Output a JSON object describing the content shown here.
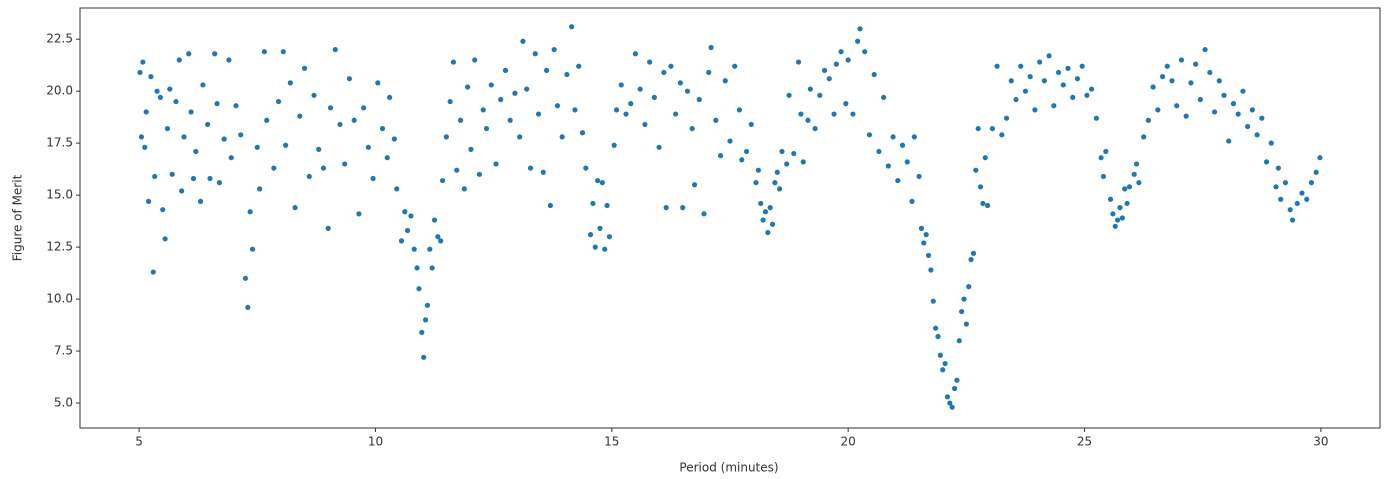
{
  "chart_data": {
    "type": "scatter",
    "xlabel": "Period (minutes)",
    "ylabel": "Figure of Merit",
    "color": "#1f77b4",
    "xlim": [
      3.75,
      31.25
    ],
    "ylim": [
      3.8,
      24.0
    ],
    "xticks": [
      5,
      10,
      15,
      20,
      25,
      30
    ],
    "yticks": [
      {
        "value": 5,
        "label": "5.0"
      },
      7.5,
      {
        "value": 10,
        "label": "10.0"
      },
      12.5,
      {
        "value": 15,
        "label": "15.0"
      },
      17.5,
      {
        "value": 20,
        "label": "20.0"
      },
      22.5
    ],
    "x": [
      5.02,
      5.05,
      5.08,
      5.12,
      5.15,
      5.2,
      5.25,
      5.3,
      5.33,
      5.38,
      5.45,
      5.5,
      5.55,
      5.6,
      5.65,
      5.7,
      5.78,
      5.85,
      5.9,
      5.95,
      6.05,
      6.1,
      6.15,
      6.2,
      6.3,
      6.35,
      6.45,
      6.5,
      6.6,
      6.65,
      6.7,
      6.8,
      6.9,
      6.95,
      7.05,
      7.15,
      7.25,
      7.3,
      7.35,
      7.4,
      7.5,
      7.55,
      7.65,
      7.7,
      7.85,
      7.95,
      8.05,
      8.1,
      8.2,
      8.3,
      8.4,
      8.5,
      8.6,
      8.7,
      8.8,
      8.9,
      9.0,
      9.05,
      9.15,
      9.25,
      9.35,
      9.45,
      9.55,
      9.65,
      9.75,
      9.85,
      9.95,
      10.05,
      10.15,
      10.25,
      10.3,
      10.4,
      10.45,
      10.55,
      10.62,
      10.68,
      10.75,
      10.82,
      10.88,
      10.92,
      10.98,
      11.02,
      11.06,
      11.1,
      11.15,
      11.2,
      11.25,
      11.32,
      11.38,
      11.42,
      11.5,
      11.58,
      11.65,
      11.72,
      11.8,
      11.88,
      11.95,
      12.02,
      12.1,
      12.2,
      12.28,
      12.35,
      12.45,
      12.55,
      12.65,
      12.75,
      12.85,
      12.95,
      13.05,
      13.12,
      13.2,
      13.28,
      13.38,
      13.45,
      13.55,
      13.62,
      13.7,
      13.78,
      13.85,
      13.95,
      14.05,
      14.15,
      14.22,
      14.3,
      14.38,
      14.45,
      14.55,
      14.6,
      14.65,
      14.7,
      14.75,
      14.8,
      14.85,
      14.9,
      14.95,
      15.05,
      15.1,
      15.2,
      15.3,
      15.4,
      15.5,
      15.6,
      15.7,
      15.8,
      15.9,
      16.0,
      16.1,
      16.15,
      16.25,
      16.35,
      16.45,
      16.5,
      16.6,
      16.7,
      16.75,
      16.85,
      16.95,
      17.05,
      17.1,
      17.2,
      17.3,
      17.4,
      17.5,
      17.6,
      17.7,
      17.75,
      17.85,
      17.95,
      18.05,
      18.1,
      18.15,
      18.2,
      18.25,
      18.3,
      18.35,
      18.4,
      18.45,
      18.5,
      18.55,
      18.6,
      18.7,
      18.75,
      18.85,
      18.95,
      19.0,
      19.05,
      19.15,
      19.2,
      19.3,
      19.4,
      19.5,
      19.6,
      19.7,
      19.75,
      19.85,
      19.95,
      20.0,
      20.1,
      20.2,
      20.25,
      20.35,
      20.45,
      20.55,
      20.65,
      20.75,
      20.85,
      20.95,
      21.05,
      21.15,
      21.25,
      21.35,
      21.4,
      21.5,
      21.55,
      21.6,
      21.65,
      21.7,
      21.75,
      21.8,
      21.85,
      21.9,
      21.95,
      22.0,
      22.05,
      22.1,
      22.15,
      22.2,
      22.25,
      22.3,
      22.35,
      22.4,
      22.45,
      22.5,
      22.55,
      22.6,
      22.65,
      22.7,
      22.75,
      22.8,
      22.85,
      22.9,
      22.95,
      23.05,
      23.15,
      23.25,
      23.35,
      23.45,
      23.55,
      23.65,
      23.75,
      23.85,
      23.95,
      24.05,
      24.15,
      24.25,
      24.35,
      24.45,
      24.55,
      24.65,
      24.75,
      24.85,
      24.95,
      25.05,
      25.15,
      25.25,
      25.35,
      25.4,
      25.45,
      25.55,
      25.6,
      25.65,
      25.7,
      25.75,
      25.8,
      25.85,
      25.9,
      25.95,
      26.05,
      26.1,
      26.15,
      26.25,
      26.35,
      26.45,
      26.55,
      26.65,
      26.75,
      26.85,
      26.95,
      27.05,
      27.15,
      27.25,
      27.35,
      27.45,
      27.55,
      27.65,
      27.75,
      27.85,
      27.95,
      28.05,
      28.15,
      28.25,
      28.35,
      28.45,
      28.55,
      28.65,
      28.75,
      28.85,
      28.95,
      29.05,
      29.1,
      29.15,
      29.25,
      29.35,
      29.4,
      29.5,
      29.6,
      29.7,
      29.8,
      29.9,
      29.98
    ],
    "values": [
      20.9,
      17.8,
      21.4,
      17.3,
      19.0,
      14.7,
      20.7,
      11.3,
      15.9,
      20.0,
      19.7,
      14.3,
      12.9,
      18.2,
      20.1,
      16.0,
      19.5,
      21.5,
      15.2,
      17.8,
      21.8,
      19.0,
      15.8,
      17.1,
      14.7,
      20.3,
      18.4,
      15.8,
      21.8,
      19.4,
      15.6,
      17.7,
      21.5,
      16.8,
      19.3,
      17.9,
      11.0,
      9.6,
      14.2,
      12.4,
      17.3,
      15.3,
      21.9,
      18.6,
      16.3,
      19.5,
      21.9,
      17.4,
      20.4,
      14.4,
      18.8,
      21.1,
      15.9,
      19.8,
      17.2,
      16.3,
      13.4,
      19.2,
      22.0,
      18.4,
      16.5,
      20.6,
      18.6,
      14.1,
      19.2,
      17.3,
      15.8,
      20.4,
      18.2,
      16.8,
      19.7,
      17.7,
      15.3,
      12.8,
      14.2,
      13.3,
      14.0,
      12.4,
      11.5,
      10.5,
      8.4,
      7.2,
      9.0,
      9.7,
      12.4,
      11.5,
      13.8,
      13.0,
      12.8,
      15.7,
      17.8,
      19.5,
      21.4,
      16.2,
      18.6,
      15.3,
      20.2,
      17.2,
      21.5,
      16.0,
      19.1,
      18.2,
      20.3,
      16.5,
      19.6,
      21.0,
      18.6,
      19.9,
      17.8,
      22.4,
      20.1,
      16.3,
      21.8,
      18.9,
      16.1,
      21.0,
      14.5,
      22.0,
      19.3,
      17.8,
      20.8,
      23.1,
      19.1,
      21.2,
      18.0,
      16.3,
      13.1,
      14.6,
      12.5,
      15.7,
      13.4,
      15.6,
      12.4,
      14.5,
      13.0,
      17.4,
      19.1,
      20.3,
      18.9,
      19.4,
      21.8,
      20.1,
      18.4,
      21.4,
      19.7,
      17.3,
      20.9,
      14.4,
      21.2,
      18.9,
      20.4,
      14.4,
      20.0,
      18.2,
      15.5,
      19.6,
      14.1,
      20.9,
      22.1,
      18.6,
      16.9,
      20.5,
      17.6,
      21.2,
      19.1,
      16.7,
      17.1,
      18.4,
      15.6,
      16.2,
      14.6,
      13.8,
      14.2,
      13.2,
      14.4,
      13.6,
      15.6,
      16.1,
      15.3,
      17.1,
      16.5,
      19.8,
      17.0,
      21.4,
      18.9,
      16.6,
      18.6,
      20.1,
      18.2,
      19.8,
      21.0,
      20.6,
      18.9,
      21.3,
      21.9,
      19.4,
      21.5,
      18.9,
      22.4,
      23.0,
      21.9,
      17.9,
      20.8,
      17.1,
      19.7,
      16.4,
      17.8,
      15.7,
      17.4,
      16.6,
      14.7,
      17.8,
      15.9,
      13.4,
      12.7,
      13.1,
      12.1,
      11.4,
      9.9,
      8.6,
      8.2,
      7.3,
      6.6,
      6.9,
      5.3,
      5.0,
      4.8,
      5.7,
      6.1,
      8.0,
      9.4,
      10.0,
      8.8,
      10.6,
      11.9,
      12.2,
      16.2,
      18.2,
      15.4,
      14.6,
      16.8,
      14.5,
      18.2,
      21.2,
      17.9,
      18.7,
      20.5,
      19.6,
      21.2,
      20.0,
      20.7,
      19.1,
      21.4,
      20.5,
      21.7,
      19.3,
      20.9,
      20.3,
      21.1,
      19.7,
      20.6,
      21.2,
      19.8,
      20.1,
      18.7,
      16.8,
      15.9,
      17.1,
      14.8,
      14.1,
      13.5,
      13.8,
      14.4,
      13.9,
      15.3,
      14.6,
      15.4,
      16.0,
      16.5,
      15.6,
      17.8,
      18.6,
      20.2,
      19.1,
      20.7,
      21.2,
      20.5,
      19.3,
      21.5,
      18.8,
      20.4,
      21.3,
      19.6,
      22.0,
      20.9,
      19.0,
      20.5,
      19.8,
      17.6,
      19.4,
      18.9,
      20.0,
      18.3,
      19.1,
      17.9,
      18.7,
      16.6,
      17.5,
      15.4,
      16.3,
      14.8,
      15.6,
      14.3,
      13.8,
      14.6,
      15.1,
      14.8,
      15.6,
      16.1,
      16.8
    ]
  }
}
